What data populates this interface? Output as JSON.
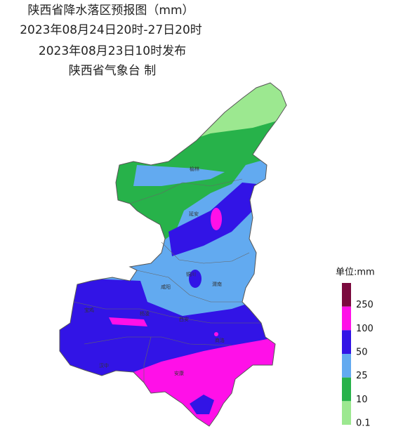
{
  "header": {
    "title": "陕西省降水落区预报图（mm）",
    "period": "2023年08月24日20时-27日20时",
    "issued": "2023年08月23日10时发布",
    "issuer": "陕西省气象台 制"
  },
  "legend": {
    "title": "单位:mm",
    "top_color": "#7b0a3e",
    "levels": [
      {
        "label": 250,
        "color": "#ff10e8"
      },
      {
        "label": 100,
        "color": "#3214e6"
      },
      {
        "label": 50,
        "color": "#62aaf0"
      },
      {
        "label": 25,
        "color": "#27b24a"
      },
      {
        "label": 10,
        "color": "#9ce890"
      },
      {
        "label": 0.1,
        "color": "#9ce890"
      }
    ]
  },
  "cities": [
    "榆林",
    "延安",
    "铜川",
    "咸阳",
    "渭南",
    "宝鸡",
    "杨凌",
    "西安",
    "商洛",
    "汉中",
    "安康"
  ]
}
